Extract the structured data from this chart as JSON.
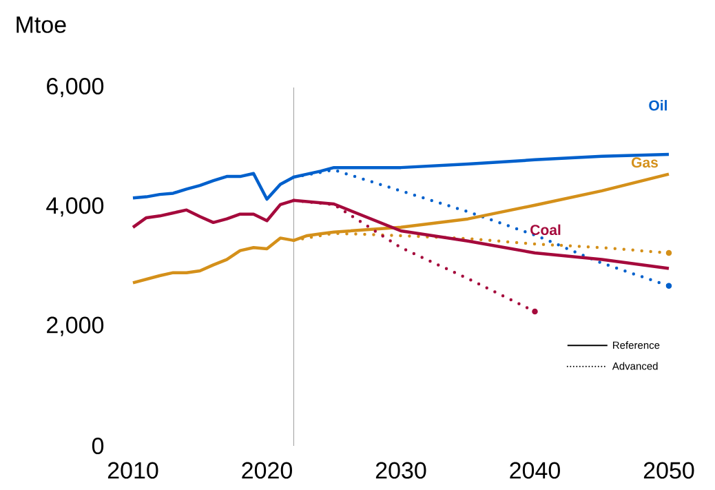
{
  "chart_data": {
    "type": "line",
    "ylabel": "Mtoe",
    "x": [
      2010,
      2011,
      2012,
      2013,
      2014,
      2015,
      2016,
      2017,
      2018,
      2019,
      2020,
      2021,
      2022,
      2023,
      2024,
      2025,
      2030,
      2035,
      2040,
      2045,
      2050
    ],
    "series": [
      {
        "name": "Oil",
        "color": "#0060cc",
        "line_style": "solid",
        "values": [
          4150,
          4170,
          4210,
          4230,
          4300,
          4360,
          4440,
          4510,
          4510,
          4560,
          4130,
          4380,
          4500,
          4550,
          4600,
          4660,
          4660,
          4720,
          4790,
          4850,
          4880
        ]
      },
      {
        "color": "#0060cc",
        "line_style": "dotted",
        "x": [
          2022,
          2025,
          2030,
          2035,
          2040,
          2045,
          2050
        ],
        "values": [
          4500,
          4620,
          4270,
          3920,
          3530,
          3060,
          2680
        ]
      },
      {
        "name": "Gas",
        "color": "#d4901a",
        "line_style": "solid",
        "values": [
          2730,
          2790,
          2850,
          2900,
          2900,
          2930,
          3030,
          3120,
          3270,
          3320,
          3300,
          3480,
          3440,
          3520,
          3550,
          3580,
          3660,
          3800,
          4030,
          4270,
          4550
        ]
      },
      {
        "color": "#d4901a",
        "line_style": "dotted",
        "x": [
          2022,
          2025,
          2030,
          2035,
          2040,
          2045,
          2050
        ],
        "values": [
          3440,
          3560,
          3520,
          3470,
          3380,
          3320,
          3230
        ]
      },
      {
        "name": "Coal",
        "color": "#a50a3c",
        "line_style": "solid",
        "values": [
          3660,
          3820,
          3850,
          3900,
          3950,
          3840,
          3740,
          3800,
          3880,
          3880,
          3770,
          4040,
          4110,
          4090,
          4070,
          4050,
          3600,
          3430,
          3230,
          3120,
          2970
        ]
      },
      {
        "color": "#a50a3c",
        "line_style": "dotted",
        "x": [
          2022,
          2025,
          2030,
          2035,
          2040
        ],
        "values": [
          4110,
          4040,
          3320,
          2800,
          2250
        ]
      }
    ],
    "annotations": [
      "Reference",
      "Advanced"
    ],
    "ref_lines": [
      {
        "axis": "x",
        "value": 2022,
        "color": "#808080"
      }
    ],
    "xlim": [
      2010,
      2050
    ],
    "ylim": [
      0,
      6000
    ],
    "xticks": [
      2010,
      2020,
      2030,
      2040,
      2050
    ],
    "yticks": [
      {
        "value": 0,
        "label": "0"
      },
      {
        "value": 2000,
        "label": "2,000"
      },
      {
        "value": 4000,
        "label": "4,000"
      },
      {
        "value": 6000,
        "label": "6,000"
      }
    ],
    "legend": "top right",
    "marker": "none",
    "grid": false
  }
}
